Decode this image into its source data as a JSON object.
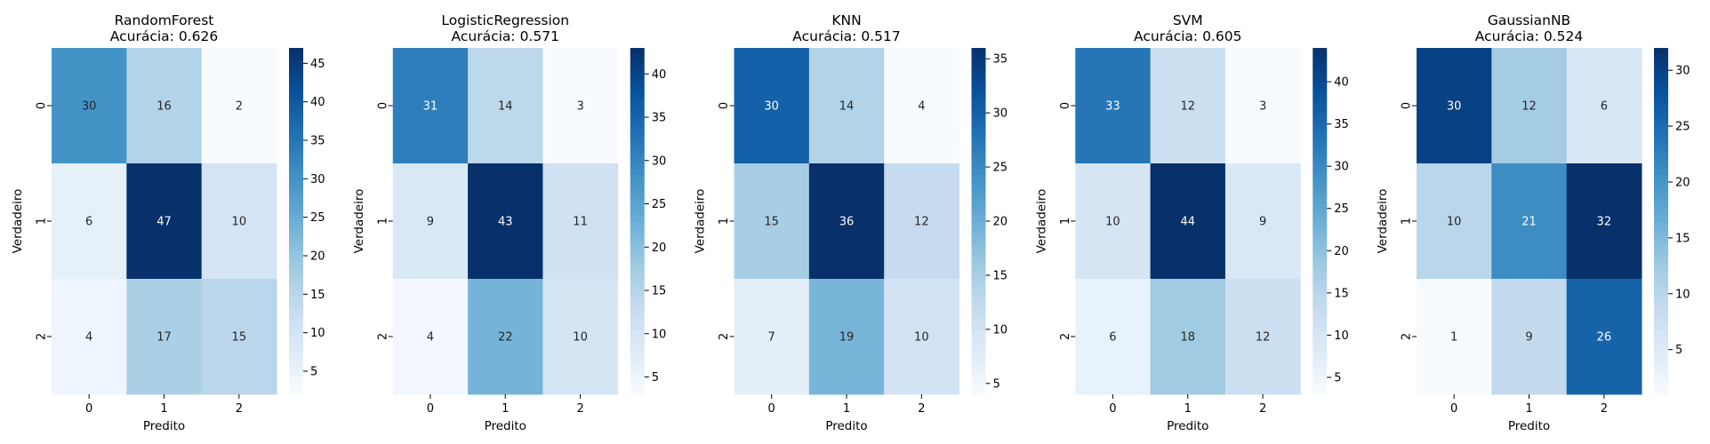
{
  "figure": {
    "accuracy_label": "Acurácia:"
  },
  "chart_data": [
    {
      "type": "heatmap",
      "title": "RandomForest",
      "subtitle": "Acurácia: 0.626",
      "xlabel": "Predito",
      "ylabel": "Verdadeiro",
      "x_categories": [
        "0",
        "1",
        "2"
      ],
      "y_categories": [
        "0",
        "1",
        "2"
      ],
      "values": [
        [
          30,
          16,
          2
        ],
        [
          6,
          47,
          10
        ],
        [
          4,
          17,
          15
        ]
      ],
      "colorbar_ticks": [
        5,
        10,
        15,
        20,
        25,
        30,
        35,
        40,
        45
      ],
      "colormap": "Blues",
      "vmin": 2,
      "vmax": 47
    },
    {
      "type": "heatmap",
      "title": "LogisticRegression",
      "subtitle": "Acurácia: 0.571",
      "xlabel": "Predito",
      "ylabel": "Verdadeiro",
      "x_categories": [
        "0",
        "1",
        "2"
      ],
      "y_categories": [
        "0",
        "1",
        "2"
      ],
      "values": [
        [
          31,
          14,
          3
        ],
        [
          9,
          43,
          11
        ],
        [
          4,
          22,
          10
        ]
      ],
      "colorbar_ticks": [
        5,
        10,
        15,
        20,
        25,
        30,
        35,
        40
      ],
      "colormap": "Blues",
      "vmin": 3,
      "vmax": 43
    },
    {
      "type": "heatmap",
      "title": "KNN",
      "subtitle": "Acurácia: 0.517",
      "xlabel": "Predito",
      "ylabel": "Verdadeiro",
      "x_categories": [
        "0",
        "1",
        "2"
      ],
      "y_categories": [
        "0",
        "1",
        "2"
      ],
      "values": [
        [
          30,
          14,
          4
        ],
        [
          15,
          36,
          12
        ],
        [
          7,
          19,
          10
        ]
      ],
      "colorbar_ticks": [
        5,
        10,
        15,
        20,
        25,
        30,
        35
      ],
      "colormap": "Blues",
      "vmin": 4,
      "vmax": 36
    },
    {
      "type": "heatmap",
      "title": "SVM",
      "subtitle": "Acurácia: 0.605",
      "xlabel": "Predito",
      "ylabel": "Verdadeiro",
      "x_categories": [
        "0",
        "1",
        "2"
      ],
      "y_categories": [
        "0",
        "1",
        "2"
      ],
      "values": [
        [
          33,
          12,
          3
        ],
        [
          10,
          44,
          9
        ],
        [
          6,
          18,
          12
        ]
      ],
      "colorbar_ticks": [
        5,
        10,
        15,
        20,
        25,
        30,
        35,
        40
      ],
      "colormap": "Blues",
      "vmin": 3,
      "vmax": 44
    },
    {
      "type": "heatmap",
      "title": "GaussianNB",
      "subtitle": "Acurácia: 0.524",
      "xlabel": "Predito",
      "ylabel": "Verdadeiro",
      "x_categories": [
        "0",
        "1",
        "2"
      ],
      "y_categories": [
        "0",
        "1",
        "2"
      ],
      "values": [
        [
          30,
          12,
          6
        ],
        [
          10,
          21,
          32
        ],
        [
          1,
          9,
          26
        ]
      ],
      "colorbar_ticks": [
        5,
        10,
        15,
        20,
        25,
        30
      ],
      "colormap": "Blues",
      "vmin": 1,
      "vmax": 32
    }
  ]
}
